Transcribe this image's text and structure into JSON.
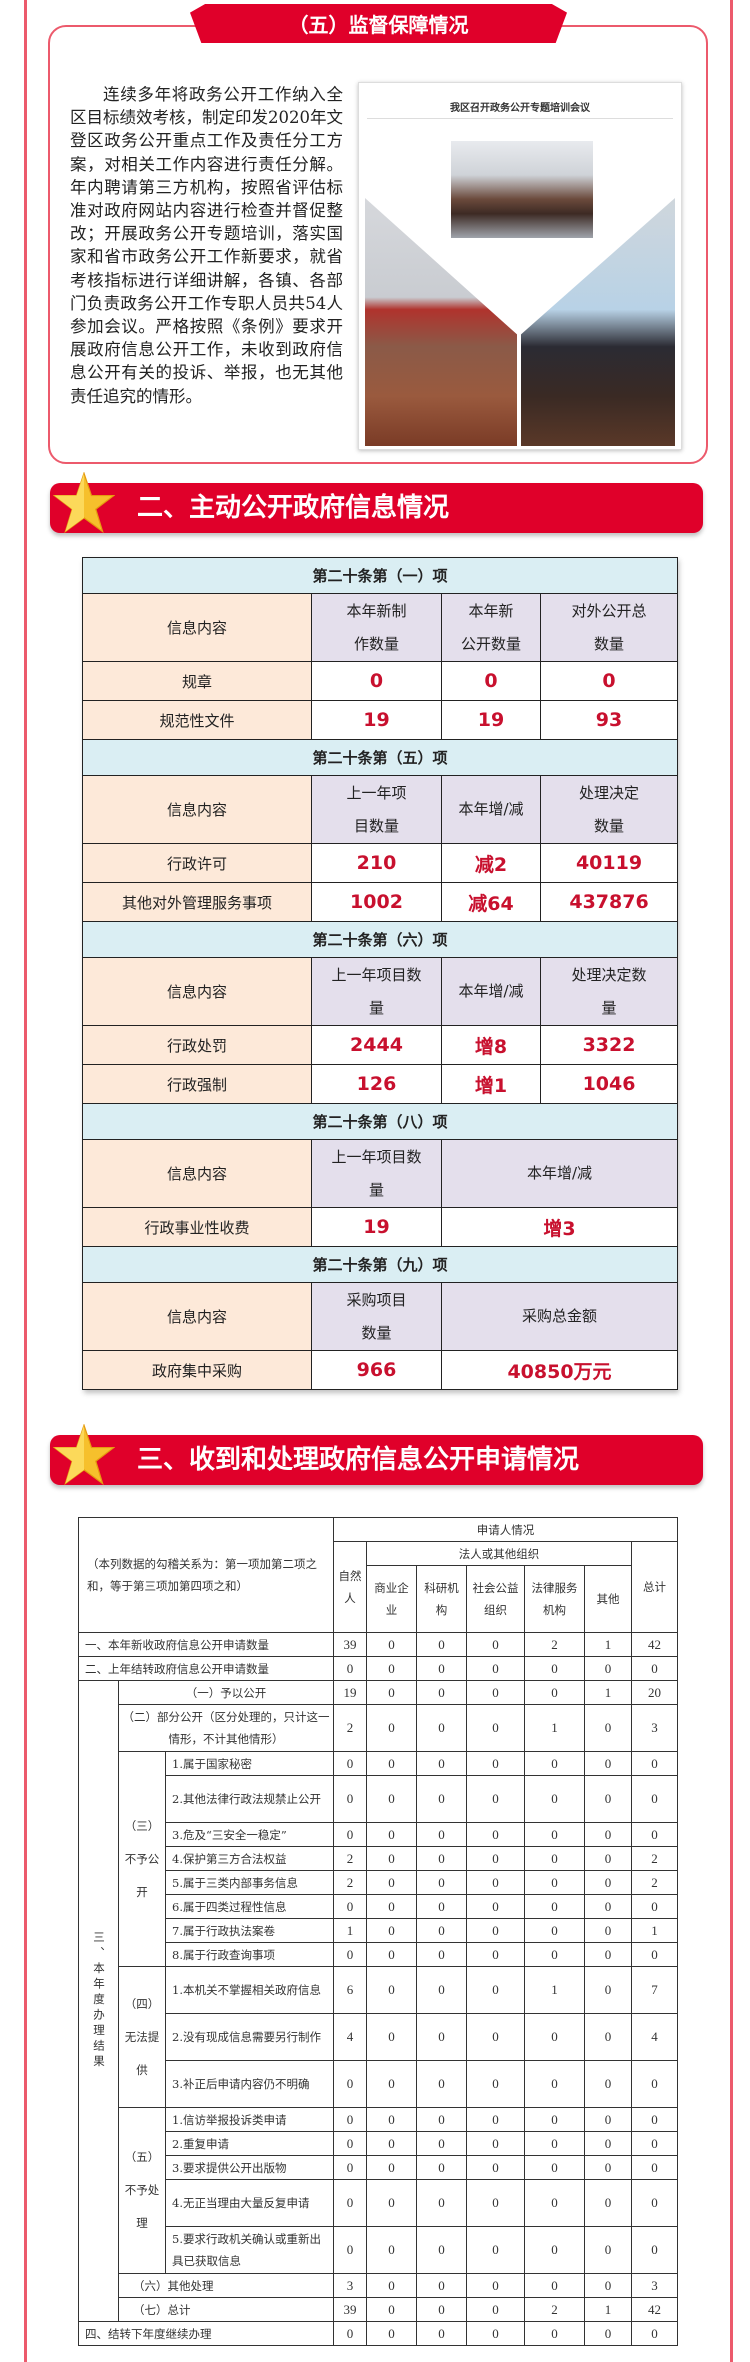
{
  "section5": {
    "title": "（五）监督保障情况",
    "paragraph": "连续多年将政务公开工作纳入全区目标绩效考核，制定印发2020年文登区政务公开重点工作及责任分工方案，对相关工作内容进行责任分解。年内聘请第三方机构，按照省评估标准对政府网站内容进行检查并督促整改；开展政务公开专题培训，落实国家和省市政务公开工作新要求，就省考核指标进行详细讲解，各镇、各部门负责政务公开工作专职人员共54人参加会议。严格按照《条例》要求开展政府信息公开工作，未收到政府信息公开有关的投诉、举报，也无其他责任追究的情形。",
    "photo_title": "我区召开政务公开专题培训会议"
  },
  "section2": {
    "title": "二、主动公开政府信息情况",
    "tables": [
      {
        "header": "第二十条第（一）项",
        "cols": [
          "信息内容",
          "本年新制\n作数量",
          "本年新\n公开数量",
          "对外公开总\n数量"
        ],
        "rows": [
          [
            "规章",
            "0",
            "0",
            "0"
          ],
          [
            "规范性文件",
            "19",
            "19",
            "93"
          ]
        ]
      },
      {
        "header": "第二十条第（五）项",
        "cols": [
          "信息内容",
          "上一年项\n目数量",
          "本年增/减",
          "处理决定\n数量"
        ],
        "rows": [
          [
            "行政许可",
            "210",
            "减2",
            "40119"
          ],
          [
            "其他对外管理服务事项",
            "1002",
            "减64",
            "437876"
          ]
        ]
      },
      {
        "header": "第二十条第（六）项",
        "cols": [
          "信息内容",
          "上一年项目数\n量",
          "本年增/减",
          "处理决定数\n量"
        ],
        "rows": [
          [
            "行政处罚",
            "2444",
            "增8",
            "3322"
          ],
          [
            "行政强制",
            "126",
            "增1",
            "1046"
          ]
        ]
      },
      {
        "header": "第二十条第（八）项",
        "cols": [
          "信息内容",
          "上一年项目数\n量",
          "本年增/减"
        ],
        "rows": [
          [
            "行政事业性收费",
            "19",
            "增3"
          ]
        ]
      },
      {
        "header": "第二十条第（九）项",
        "cols": [
          "信息内容",
          "采购项目\n数量",
          "采购总金额"
        ],
        "rows": [
          [
            "政府集中采购",
            "966",
            "40850万元"
          ]
        ]
      }
    ]
  },
  "section3": {
    "title": "三、收到和处理政府信息公开申请情况",
    "header": {
      "note": "（本列数据的勾稽关系为：第一项加第二项之和，等于第三项加第四项之和）",
      "applicant": "申请人情况",
      "natural": "自然人",
      "org": "法人或其他组织",
      "org_cols": [
        "商业企业",
        "科研机构",
        "社会公益组织",
        "法律服务机构",
        "其他"
      ],
      "total": "总计"
    },
    "group_label": "三、本年度办理结果",
    "sub_groups": {
      "g3": "（三）不予公开",
      "g4": "（四）无法提供",
      "g5": "（五）不予处理"
    },
    "rows": [
      {
        "label": "一、本年新收政府信息公开申请数量",
        "values": [
          "39",
          "0",
          "0",
          "0",
          "2",
          "1",
          "42"
        ]
      },
      {
        "label": "二、上年结转政府信息公开申请数量",
        "values": [
          "0",
          "0",
          "0",
          "0",
          "0",
          "0",
          "0"
        ]
      },
      {
        "label": "（一）予以公开",
        "values": [
          "19",
          "0",
          "0",
          "0",
          "0",
          "1",
          "20"
        ]
      },
      {
        "label": "（二）部分公开（区分处理的，只计这一情形，不计其他情形）",
        "values": [
          "2",
          "0",
          "0",
          "0",
          "1",
          "0",
          "3"
        ]
      },
      {
        "label": "1.属于国家秘密",
        "values": [
          "0",
          "0",
          "0",
          "0",
          "0",
          "0",
          "0"
        ]
      },
      {
        "label": "2.其他法律行政法规禁止公开",
        "values": [
          "0",
          "0",
          "0",
          "0",
          "0",
          "0",
          "0"
        ]
      },
      {
        "label": "3.危及“三安全一稳定”",
        "values": [
          "0",
          "0",
          "0",
          "0",
          "0",
          "0",
          "0"
        ]
      },
      {
        "label": "4.保护第三方合法权益",
        "values": [
          "2",
          "0",
          "0",
          "0",
          "0",
          "0",
          "2"
        ]
      },
      {
        "label": "5.属于三类内部事务信息",
        "values": [
          "2",
          "0",
          "0",
          "0",
          "0",
          "0",
          "2"
        ]
      },
      {
        "label": "6.属于四类过程性信息",
        "values": [
          "0",
          "0",
          "0",
          "0",
          "0",
          "0",
          "0"
        ]
      },
      {
        "label": "7.属于行政执法案卷",
        "values": [
          "1",
          "0",
          "0",
          "0",
          "0",
          "0",
          "1"
        ]
      },
      {
        "label": "8.属于行政查询事项",
        "values": [
          "0",
          "0",
          "0",
          "0",
          "0",
          "0",
          "0"
        ]
      },
      {
        "label": "1.本机关不掌握相关政府信息",
        "values": [
          "6",
          "0",
          "0",
          "0",
          "1",
          "0",
          "7"
        ]
      },
      {
        "label": "2.没有现成信息需要另行制作",
        "values": [
          "4",
          "0",
          "0",
          "0",
          "0",
          "0",
          "4"
        ]
      },
      {
        "label": "3.补正后申请内容仍不明确",
        "values": [
          "0",
          "0",
          "0",
          "0",
          "0",
          "0",
          "0"
        ]
      },
      {
        "label": "1.信访举报投诉类申请",
        "values": [
          "0",
          "0",
          "0",
          "0",
          "0",
          "0",
          "0"
        ]
      },
      {
        "label": "2.重复申请",
        "values": [
          "0",
          "0",
          "0",
          "0",
          "0",
          "0",
          "0"
        ]
      },
      {
        "label": "3.要求提供公开出版物",
        "values": [
          "0",
          "0",
          "0",
          "0",
          "0",
          "0",
          "0"
        ]
      },
      {
        "label": "4.无正当理由大量反复申请",
        "values": [
          "0",
          "0",
          "0",
          "0",
          "0",
          "0",
          "0"
        ]
      },
      {
        "label": "5.要求行政机关确认或重新出具已获取信息",
        "values": [
          "0",
          "0",
          "0",
          "0",
          "0",
          "0",
          "0"
        ]
      },
      {
        "label": "（六）其他处理",
        "values": [
          "3",
          "0",
          "0",
          "0",
          "0",
          "0",
          "3"
        ]
      },
      {
        "label": "（七）总计",
        "values": [
          "39",
          "0",
          "0",
          "0",
          "2",
          "1",
          "42"
        ]
      },
      {
        "label": "四、结转下年度继续办理",
        "values": [
          "0",
          "0",
          "0",
          "0",
          "0",
          "0",
          "0"
        ]
      }
    ]
  },
  "colors": {
    "accent_red": "#e0002a",
    "value_red": "#c8102e",
    "section_header_bg": "#daeef3",
    "info_bg": "#fde9d9",
    "subheader_bg": "#e4dfec"
  }
}
